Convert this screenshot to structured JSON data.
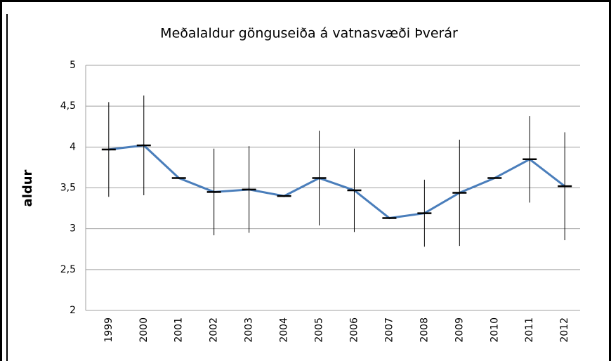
{
  "chart_data": {
    "type": "line",
    "title": "Meðalaldur gönguseiða á vatnasvæði Þverár",
    "ylabel": "aldur",
    "categories": [
      "1999",
      "2000",
      "2001",
      "2002",
      "2003",
      "2004",
      "2005",
      "2006",
      "2007",
      "2008",
      "2009",
      "2010",
      "2011",
      "2012"
    ],
    "series": [
      {
        "name": "aldur",
        "color": "#4a7ebb",
        "values": [
          3.97,
          4.02,
          3.62,
          3.45,
          3.48,
          3.4,
          3.62,
          3.47,
          3.13,
          3.19,
          3.44,
          3.62,
          3.85,
          3.52
        ],
        "errors": [
          0.58,
          0.61,
          null,
          0.53,
          0.53,
          null,
          0.58,
          0.51,
          null,
          0.41,
          0.65,
          null,
          0.53,
          0.66
        ]
      }
    ],
    "ylim": [
      2,
      5
    ],
    "yticks": [
      2,
      {
        "value": 2.5,
        "label": "2,5"
      },
      3,
      {
        "value": 3.5,
        "label": "3,5"
      },
      4,
      {
        "value": 4.5,
        "label": "4,5"
      },
      5
    ],
    "grid": true
  }
}
